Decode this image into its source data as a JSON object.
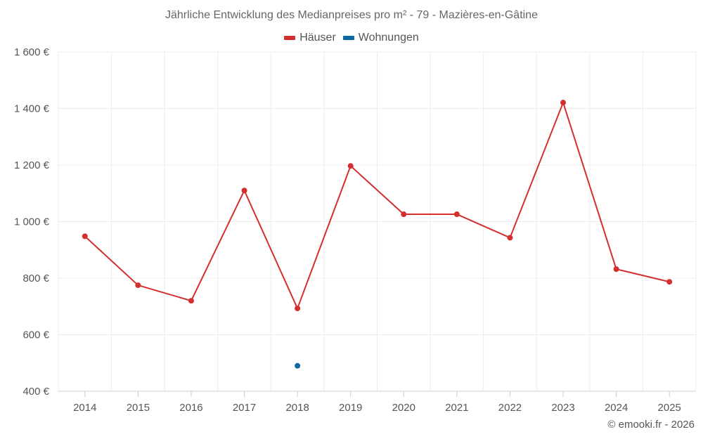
{
  "chart_data": {
    "type": "line",
    "title": "Jährliche Entwicklung des Medianpreises pro m² - 79 - Mazières-en-Gâtine",
    "xlabel": "",
    "ylabel": "",
    "categories": [
      "2014",
      "2015",
      "2016",
      "2017",
      "2018",
      "2019",
      "2020",
      "2021",
      "2022",
      "2023",
      "2024",
      "2025"
    ],
    "ylim": [
      400,
      1600
    ],
    "yticks": [
      400,
      600,
      800,
      1000,
      1200,
      1400,
      1600
    ],
    "ytick_labels": [
      "400 €",
      "600 €",
      "800 €",
      "1 000 €",
      "1 200 €",
      "1 400 €",
      "1 600 €"
    ],
    "grid": true,
    "legend_position": "top-center",
    "series": [
      {
        "name": "Häuser",
        "color": "#d32f2f",
        "values": [
          948,
          775,
          720,
          1110,
          693,
          1197,
          1026,
          1026,
          943,
          1421,
          832,
          787
        ]
      },
      {
        "name": "Wohnungen",
        "color": "#0b6aa2",
        "values": [
          null,
          null,
          null,
          null,
          490,
          null,
          null,
          null,
          null,
          null,
          null,
          null
        ]
      }
    ]
  },
  "footer": {
    "copyright": "© emooki.fr - 2026"
  }
}
